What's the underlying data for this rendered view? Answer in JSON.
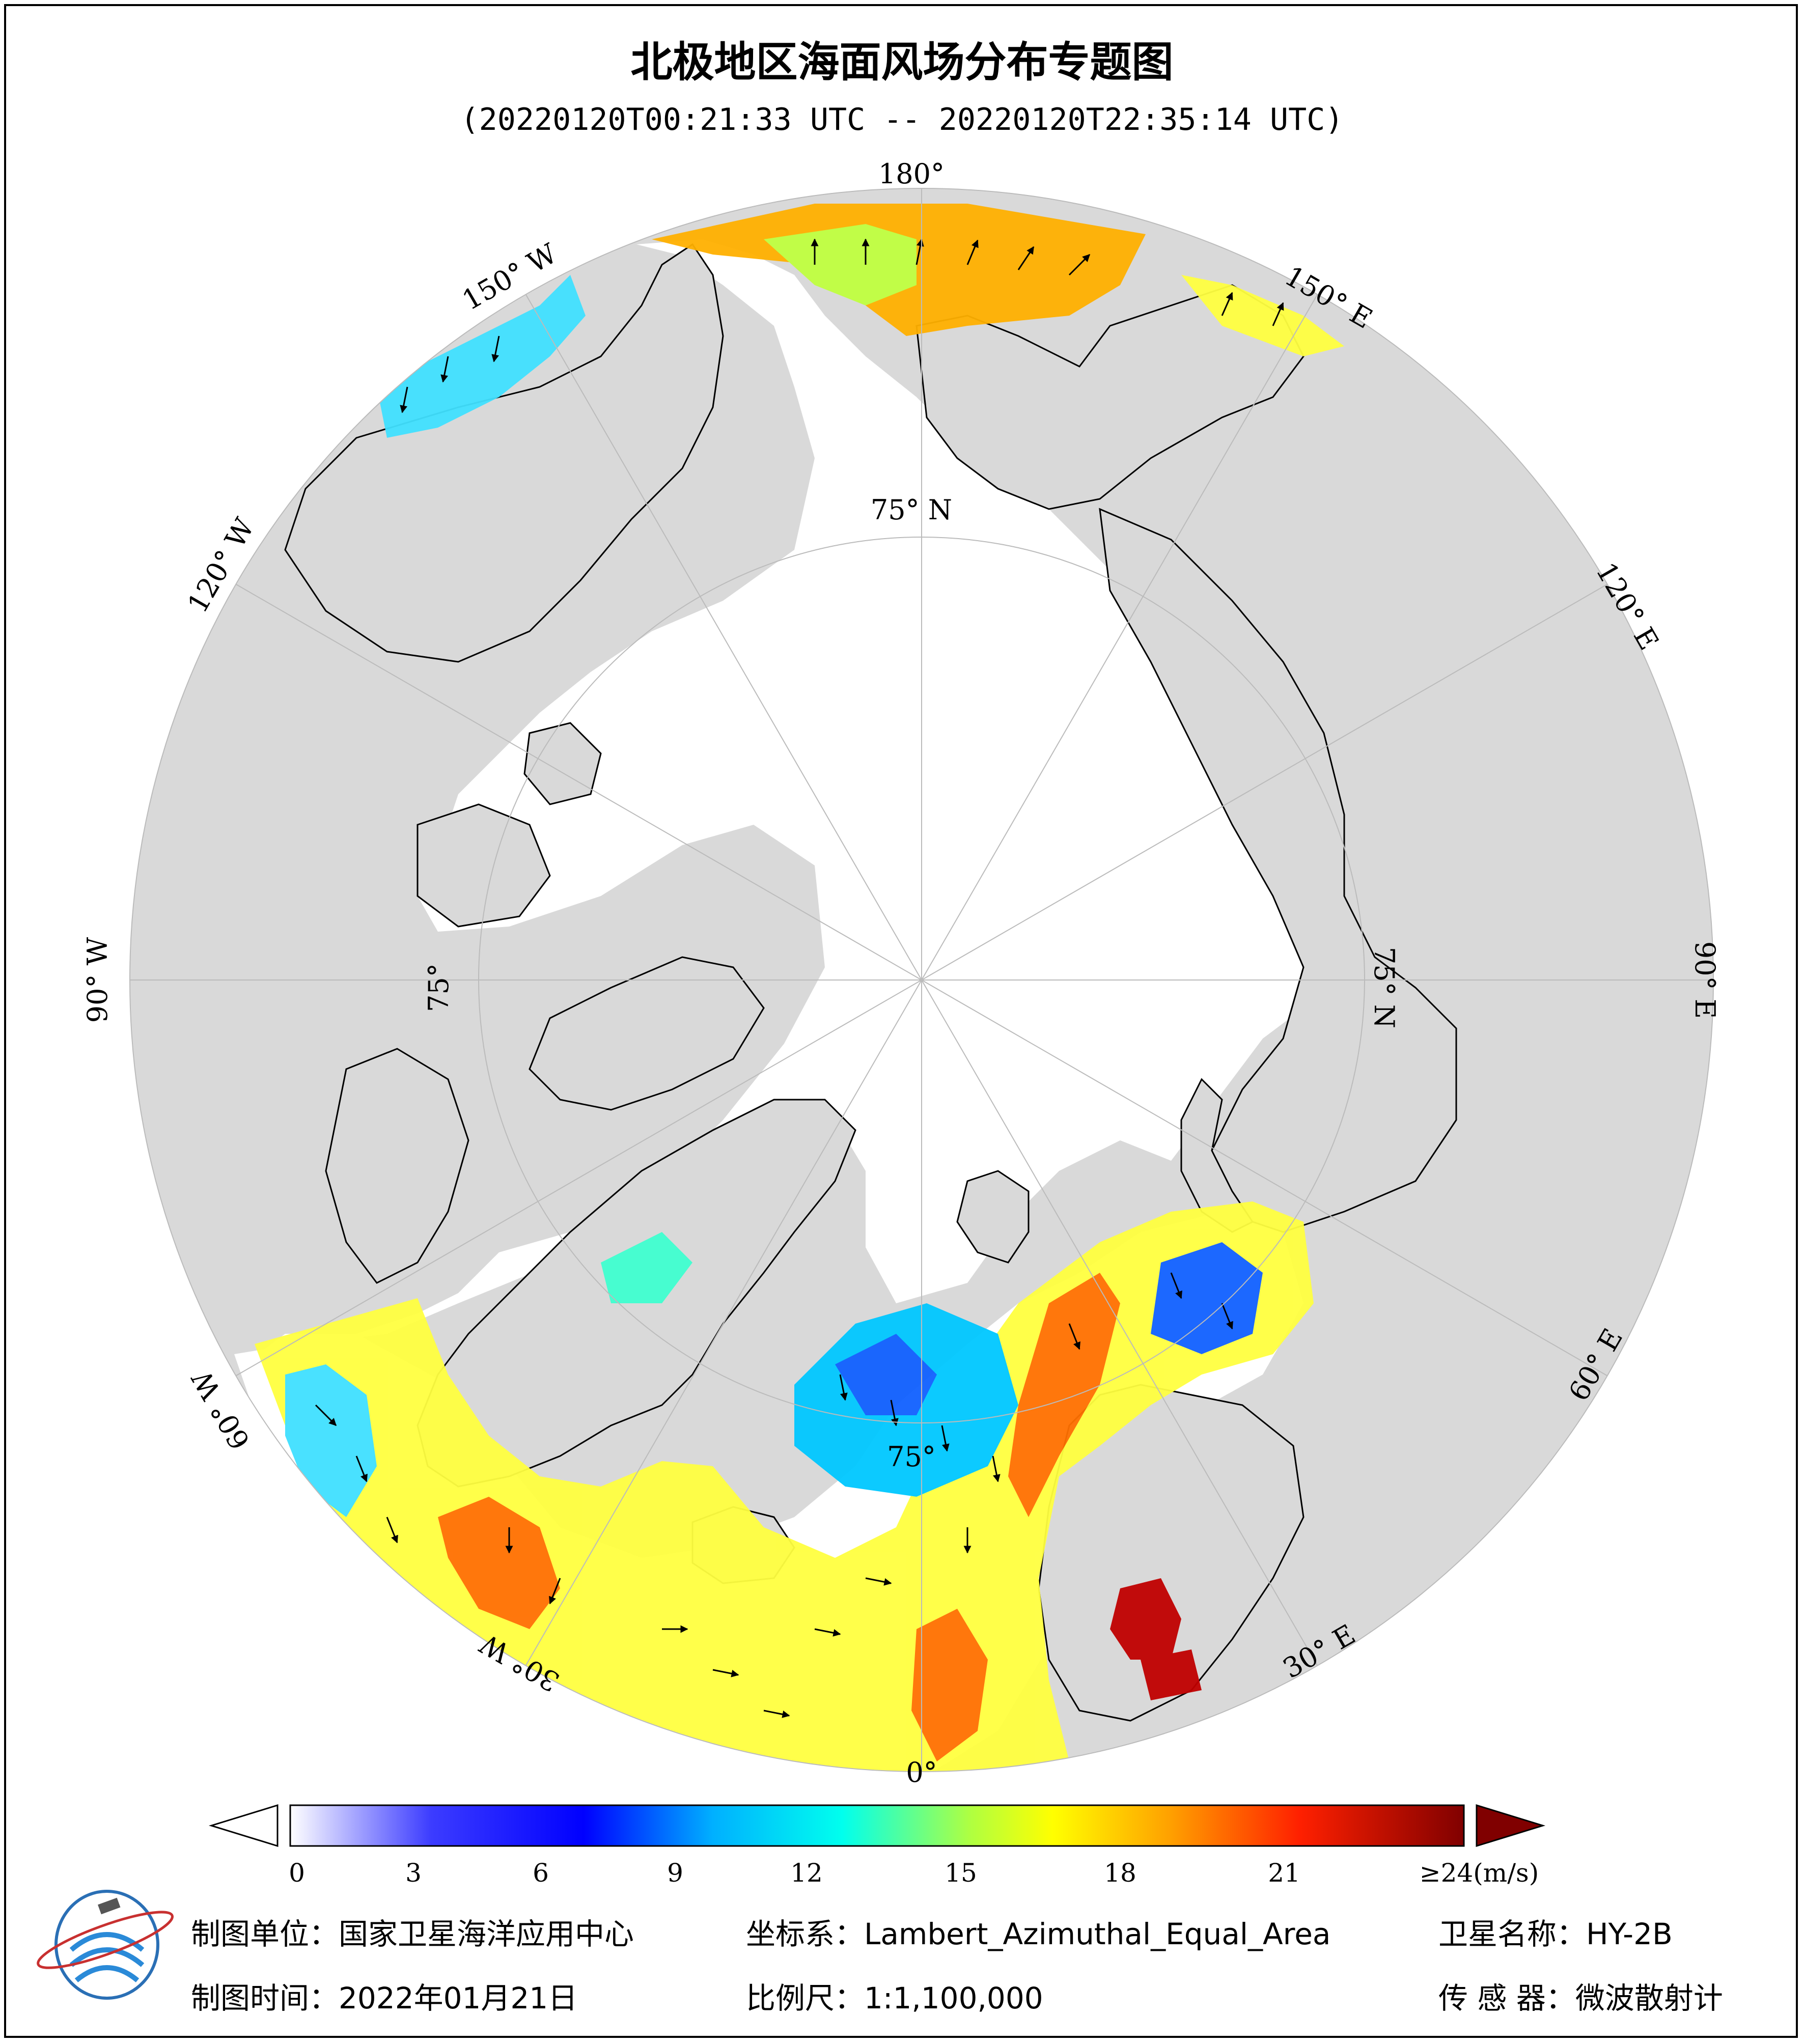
{
  "title": "北极地区海面风场分布专题图",
  "subtitle": "(20220120T00:21:33 UTC -- 20220120T22:35:14 UTC)",
  "map": {
    "longitude_labels": [
      "180°",
      "150° E",
      "120° E",
      "90° E",
      "60° E",
      "30° E",
      "0°",
      "30° W",
      "60° W",
      "90° W",
      "120° W",
      "150° W"
    ],
    "latitude_labels": [
      "75° N",
      "75° N",
      "75°",
      "75°"
    ],
    "colors": {
      "land": "#d9d9d9",
      "ice_ocean": "#ffffff",
      "graticule": "#bbbbbb",
      "arrow": "#000000"
    },
    "wind_arrow_icon": "arrow-icon"
  },
  "colorbar": {
    "ticks": [
      "0",
      "3",
      "6",
      "9",
      "12",
      "15",
      "18",
      "21",
      "≥24(m/s)"
    ],
    "colors": [
      "#ffffff",
      "#e6e6ff",
      "#c8c8ff",
      "#a0a0ff",
      "#7070ff",
      "#3c3cff",
      "#0000ff",
      "#0030ff",
      "#0060ff",
      "#0090ff",
      "#00c0ff",
      "#00e8ff",
      "#40ffd0",
      "#80ff90",
      "#c0ff40",
      "#f0ff00",
      "#ffd800",
      "#ffa000",
      "#ff6800",
      "#ff2800",
      "#e00000",
      "#b00000",
      "#800000"
    ],
    "over_color": "#800000"
  },
  "footer": {
    "mapping_unit": "制图单位：国家卫星海洋应用中心",
    "coordinate_system": "坐标系：Lambert_Azimuthal_Equal_Area",
    "satellite_name": "卫星名称：HY-2B",
    "mapping_time": "制图时间：2022年01月21日",
    "scale": "比例尺：1:1,100,000",
    "sensor": "传 感 器：微波散射计"
  },
  "logo": {
    "name": "nsoas-logo-icon"
  }
}
